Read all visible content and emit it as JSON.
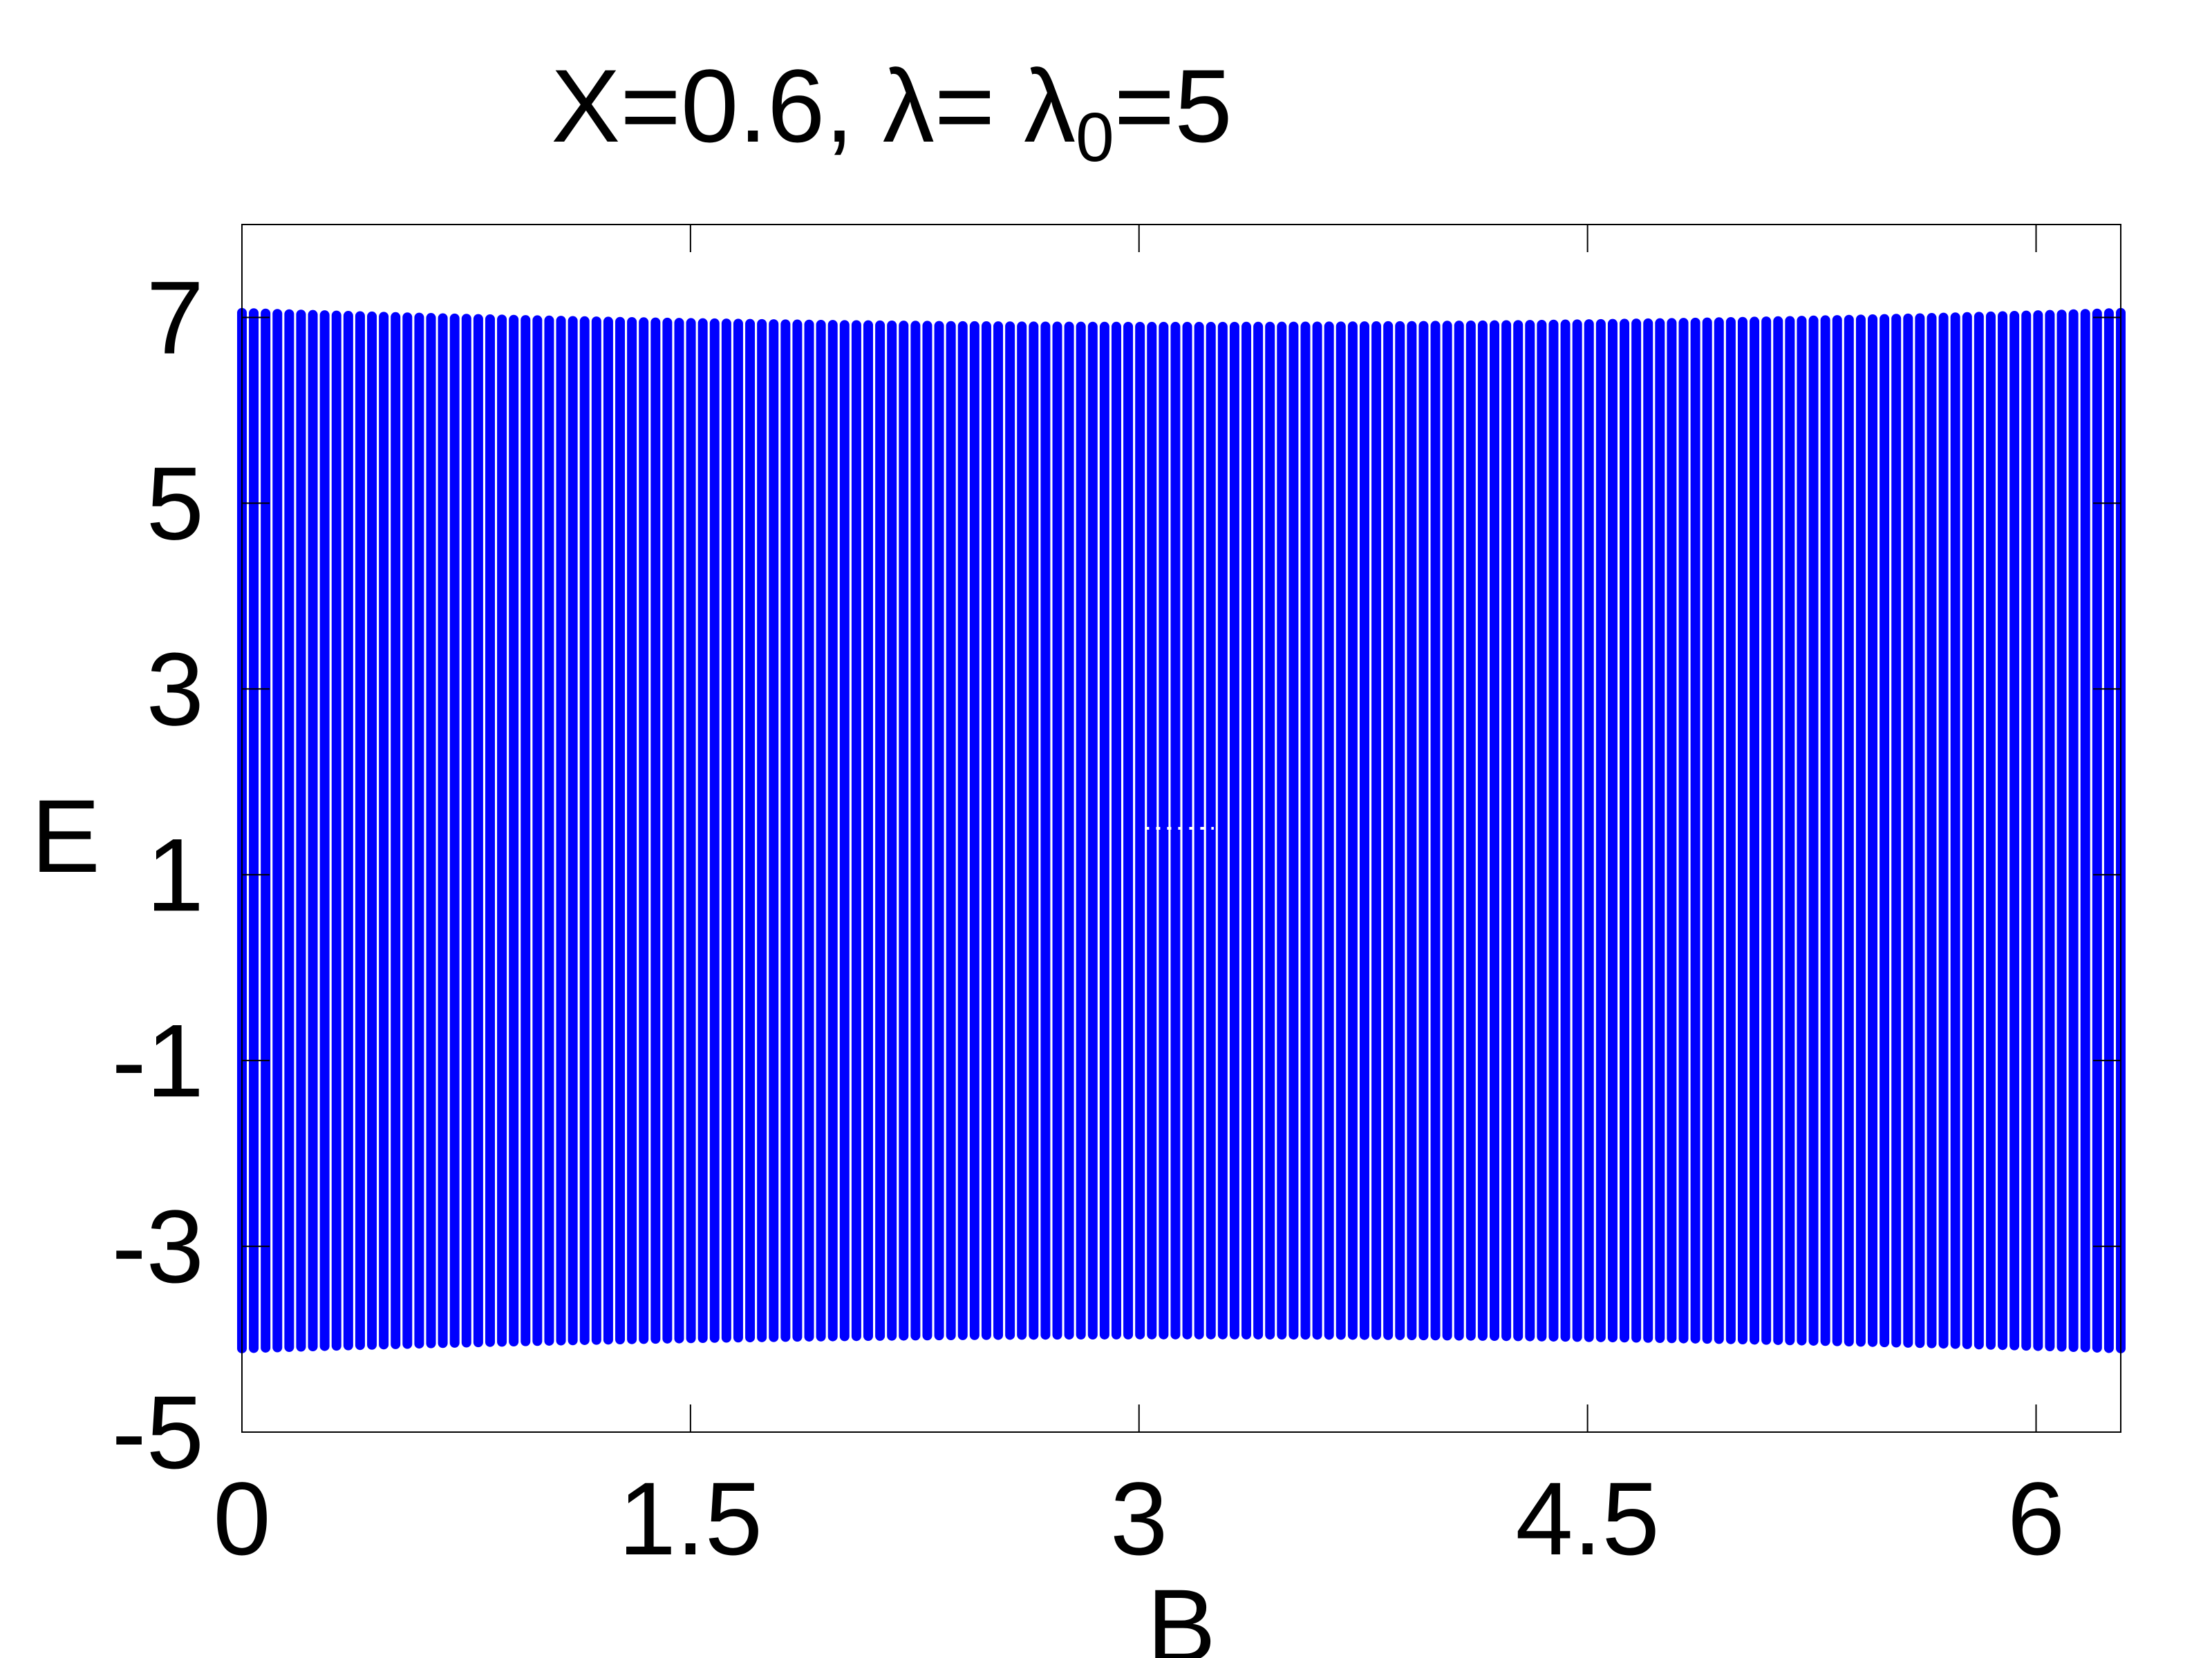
{
  "chart_data": {
    "type": "scatter",
    "title": {
      "prefix": "X=0.6, λ= λ",
      "subscript": "0",
      "suffix": "=5"
    },
    "xlabel": "B",
    "ylabel": "E",
    "xlim": [
      0,
      6.2832
    ],
    "ylim": [
      -5,
      8
    ],
    "xticks": [
      "0",
      "1.5",
      "3",
      "4.5",
      "6"
    ],
    "xtick_values": [
      0,
      1.5,
      3,
      4.5,
      6
    ],
    "yticks": [
      "-5",
      "-3",
      "-1",
      "1",
      "3",
      "5",
      "7"
    ],
    "ytick_values": [
      -5,
      -3,
      -1,
      1,
      3,
      5,
      7
    ],
    "grid": false,
    "marker_color": "#0000ff",
    "series": [
      {
        "color": "#0000ff",
        "x_range": [
          0,
          6.2832
        ],
        "n_columns": 160,
        "band_top_at_ends": 7.05,
        "band_top_at_center": 6.9,
        "band_bottom_at_ends": -4.1,
        "band_bottom_at_center": -3.95,
        "gap_near": {
          "x": [
            3.02,
            3.25
          ],
          "E": 1.5
        }
      }
    ]
  }
}
